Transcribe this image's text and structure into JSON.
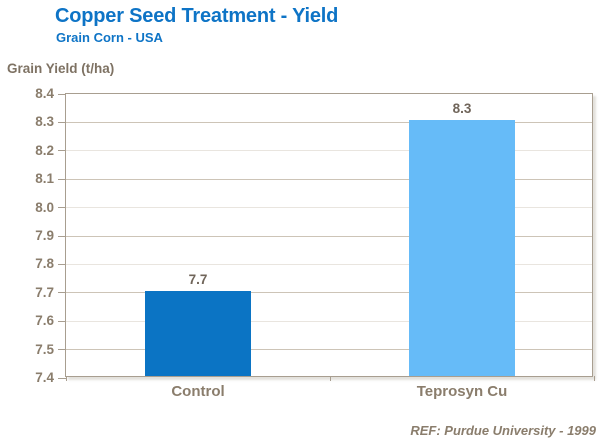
{
  "header": {
    "title": "Copper Seed Treatment - Yield",
    "subtitle": "Grain Corn - USA"
  },
  "chart_data": {
    "type": "bar",
    "title": "Copper Seed Treatment - Yield",
    "subtitle": "Grain Corn - USA",
    "ylabel": "Grain Yield (t/ha)",
    "xlabel": "",
    "categories": [
      "Control",
      "Teprosyn Cu"
    ],
    "values": [
      7.7,
      8.3
    ],
    "value_labels": [
      "7.7",
      "8.3"
    ],
    "bar_colors": [
      "#0b74c4",
      "#66bbf8"
    ],
    "ylim": [
      7.4,
      8.4
    ],
    "ytick_step": 0.1,
    "grid": true,
    "legend": "none"
  },
  "footer": {
    "ref": "REF:  Purdue University - 1999"
  },
  "colors": {
    "accent_blue": "#0e74c6",
    "label_brown": "#8a7d6c",
    "value_label_brown": "#70655a",
    "plot_border": "#a89e90",
    "grid_tan": "#cdc4b7",
    "grid_light": "#e9e5df"
  }
}
